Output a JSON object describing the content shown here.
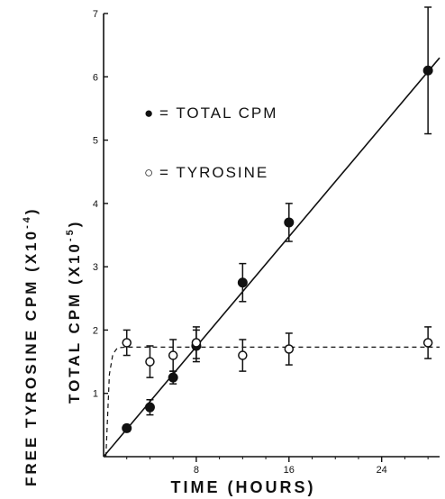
{
  "chart_data": {
    "type": "scatter",
    "xlabel": "TIME (HOURS)",
    "ylabel_outer": "FREE TYROSINE CPM (X10",
    "ylabel_outer_exp": "-4",
    "ylabel_outer_close": ")",
    "ylabel_inner": "TOTAL CPM (X10",
    "ylabel_inner_exp": "-5",
    "ylabel_inner_close": ")",
    "xlim": [
      0,
      29
    ],
    "ylim": [
      0,
      7
    ],
    "x_ticks": [
      8,
      16,
      24
    ],
    "y_ticks": [
      1,
      2,
      3,
      4,
      5,
      6,
      7
    ],
    "grid": false,
    "legend_position": "upper-left",
    "series": [
      {
        "name": "TOTAL CPM",
        "legend_symbol": "●",
        "legend_label": "= TOTAL CPM",
        "marker": "filled",
        "points": [
          {
            "x": 2,
            "y": 0.45,
            "err": 0.05
          },
          {
            "x": 4,
            "y": 0.78,
            "err": 0.12
          },
          {
            "x": 6,
            "y": 1.25,
            "err": 0.1
          },
          {
            "x": 8,
            "y": 1.75,
            "err": 0.25
          },
          {
            "x": 12,
            "y": 2.75,
            "err": 0.3
          },
          {
            "x": 16,
            "y": 3.7,
            "err": 0.3
          },
          {
            "x": 28,
            "y": 6.1,
            "err": 1.0
          }
        ],
        "fit_line": {
          "style": "solid",
          "x": [
            0,
            29
          ],
          "y": [
            0,
            6.3
          ]
        }
      },
      {
        "name": "TYROSINE",
        "legend_symbol": "○",
        "legend_label": "= TYROSINE",
        "marker": "open",
        "points": [
          {
            "x": 2,
            "y": 1.8,
            "err": 0.2
          },
          {
            "x": 4,
            "y": 1.5,
            "err": 0.25
          },
          {
            "x": 6,
            "y": 1.6,
            "err": 0.25
          },
          {
            "x": 8,
            "y": 1.8,
            "err": 0.25
          },
          {
            "x": 12,
            "y": 1.6,
            "err": 0.25
          },
          {
            "x": 16,
            "y": 1.7,
            "err": 0.25
          },
          {
            "x": 28,
            "y": 1.8,
            "err": 0.25
          }
        ],
        "fit_line": {
          "style": "dashed",
          "x": [
            0.2,
            0.5,
            0.8,
            1.2,
            2,
            29
          ],
          "y": [
            0,
            1.3,
            1.62,
            1.72,
            1.73,
            1.73
          ]
        }
      }
    ]
  }
}
